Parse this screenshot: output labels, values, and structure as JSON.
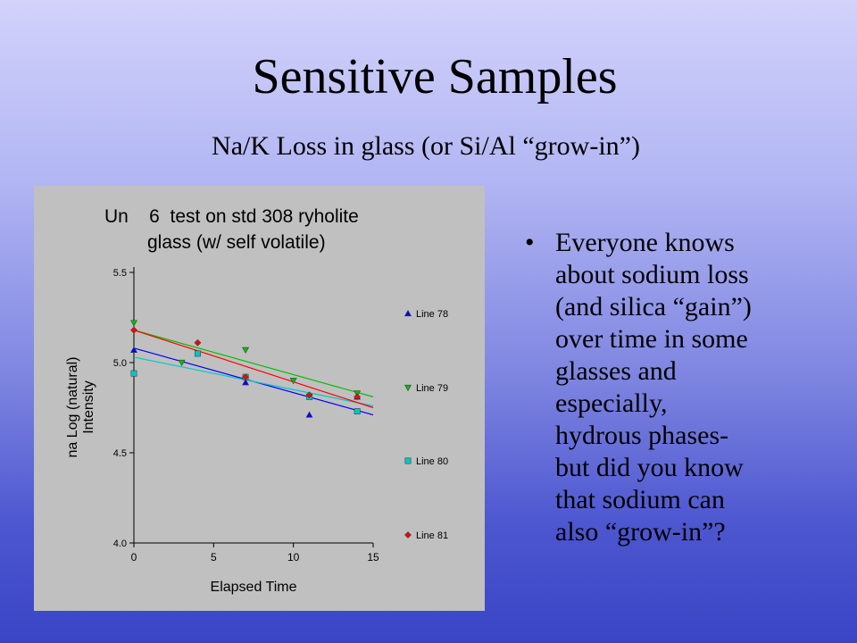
{
  "slide": {
    "title": "Sensitive Samples",
    "subtitle": "Na/K Loss in glass (or Si/Al “grow-in”)",
    "bullet_symbol": "•",
    "bullet_lines": [
      "Everyone knows",
      "about sodium loss",
      "(and silica “gain”)",
      "over time in some",
      "glasses and",
      "especially,",
      "hydrous phases-",
      "but did you know",
      "that sodium can",
      "also “grow-in”?"
    ]
  },
  "chart_data": {
    "type": "scatter",
    "title_lines": [
      "Un    6  test on std 308 ryholite",
      "glass (w/ self volatile)"
    ],
    "xlabel": "Elapsed Time",
    "ylabel_lines": [
      "na Log (natural)",
      "Intensity"
    ],
    "xlim": [
      0,
      15
    ],
    "ylim": [
      4.0,
      5.5
    ],
    "x_ticks": [
      0,
      5,
      10,
      15
    ],
    "x_tick_labels": [
      "0",
      "5",
      "10",
      "15"
    ],
    "y_ticks": [
      4.0,
      4.5,
      5.0,
      5.5
    ],
    "y_tick_labels": [
      "4.0",
      "4.5",
      "5.0",
      "5.5"
    ],
    "grid": false,
    "legend_position": "right",
    "background_color": "#c0c0c0",
    "series": [
      {
        "name": "Line 78",
        "marker": "triangle-up",
        "color": "#0000ff",
        "points": [
          [
            0,
            5.07
          ],
          [
            7,
            4.89
          ],
          [
            11,
            4.71
          ],
          [
            14,
            4.81
          ]
        ],
        "fit": [
          [
            0,
            5.08
          ],
          [
            15,
            4.71
          ]
        ]
      },
      {
        "name": "Line 79",
        "marker": "triangle-down",
        "color": "#00c000",
        "points": [
          [
            0,
            5.22
          ],
          [
            3,
            5.0
          ],
          [
            7,
            5.07
          ],
          [
            10,
            4.9
          ],
          [
            14,
            4.83
          ]
        ],
        "fit": [
          [
            0,
            5.18
          ],
          [
            15,
            4.81
          ]
        ]
      },
      {
        "name": "Line 80",
        "marker": "square",
        "color": "#00c8c8",
        "points": [
          [
            0,
            4.94
          ],
          [
            4,
            5.05
          ],
          [
            7,
            4.92
          ],
          [
            11,
            4.81
          ],
          [
            14,
            4.73
          ]
        ],
        "fit": [
          [
            0,
            5.03
          ],
          [
            15,
            4.76
          ]
        ]
      },
      {
        "name": "Line 81",
        "marker": "diamond",
        "color": "#ff0000",
        "points": [
          [
            0,
            5.18
          ],
          [
            4,
            5.11
          ],
          [
            7,
            4.92
          ],
          [
            11,
            4.82
          ],
          [
            14,
            4.81
          ]
        ],
        "fit": [
          [
            0,
            5.18
          ],
          [
            15,
            4.75
          ]
        ]
      }
    ]
  }
}
